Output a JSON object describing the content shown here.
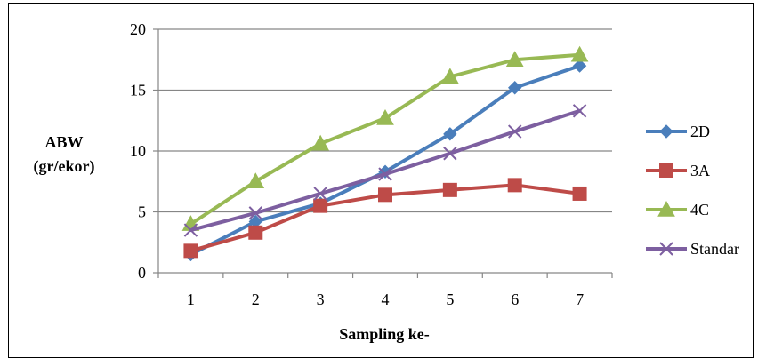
{
  "chart_data": {
    "type": "line",
    "title": "",
    "xlabel": "Sampling ke-",
    "ylabel_lines": [
      "ABW",
      "(gr/ekor)"
    ],
    "categories": [
      "1",
      "2",
      "3",
      "4",
      "5",
      "6",
      "7"
    ],
    "x": [
      1,
      2,
      3,
      4,
      5,
      6,
      7
    ],
    "ylim": [
      0,
      20
    ],
    "yticks": [
      "0",
      "5",
      "10",
      "15",
      "20"
    ],
    "grid": "horizontal",
    "legend_position": "right",
    "series": [
      {
        "name": "2D",
        "color": "#4a7ebb",
        "marker": "diamond",
        "values": [
          1.5,
          4.2,
          5.7,
          8.3,
          11.4,
          15.2,
          17.0
        ]
      },
      {
        "name": "3A",
        "color": "#be4b48",
        "marker": "square",
        "values": [
          1.8,
          3.3,
          5.5,
          6.4,
          6.8,
          7.2,
          6.5
        ]
      },
      {
        "name": "4C",
        "color": "#98b954",
        "marker": "triangle",
        "values": [
          4.0,
          7.5,
          10.6,
          12.7,
          16.1,
          17.5,
          17.9
        ]
      },
      {
        "name": "Standar",
        "color": "#7d5fa0",
        "marker": "x",
        "values": [
          3.5,
          4.9,
          6.5,
          8.1,
          9.8,
          11.6,
          13.3
        ]
      }
    ]
  }
}
